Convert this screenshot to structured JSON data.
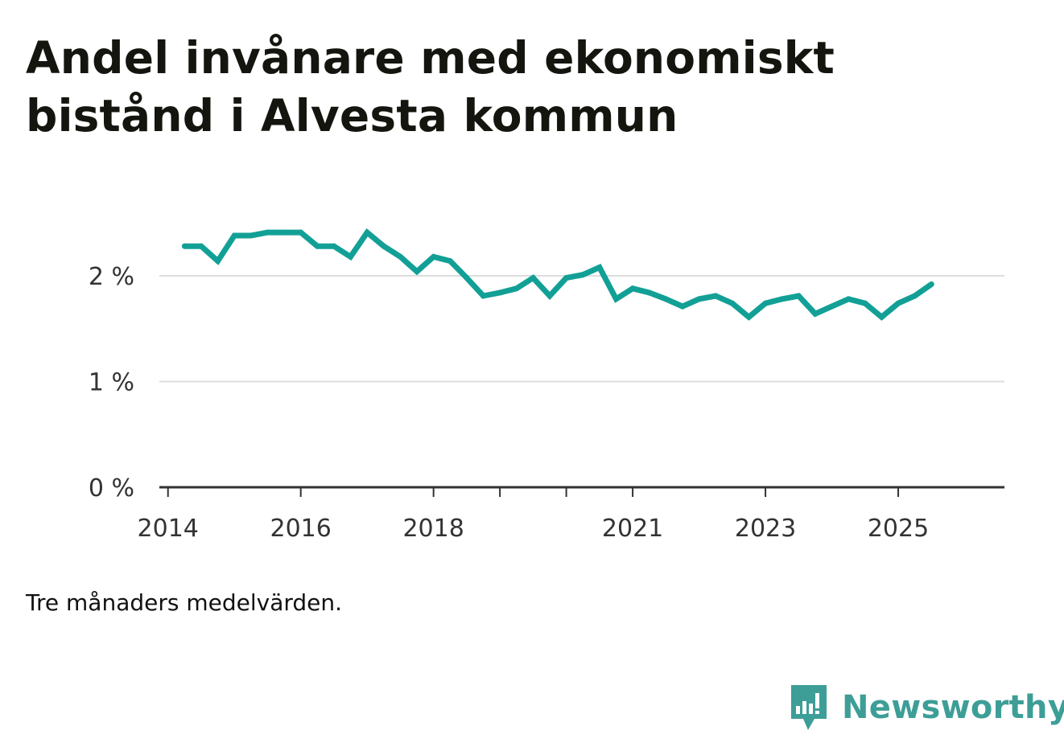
{
  "header": {
    "title": "Andel invånare med ekonomiskt bistånd i Alvesta kommun"
  },
  "footer": {
    "note": "Tre månaders medelvärden.",
    "brand": "Newsworthy"
  },
  "colors": {
    "line": "#12a096",
    "grid": "#dddddd",
    "axis": "#333333",
    "brand": "#3d9e97"
  },
  "chart_data": {
    "type": "line",
    "title": "Andel invånare med ekonomiskt bistånd i Alvesta kommun",
    "xlabel": "",
    "ylabel": "",
    "unit": "%",
    "ylim": [
      0,
      2.5
    ],
    "xlim": [
      2013.87,
      2026.6
    ],
    "y_ticks": [
      {
        "value": 0,
        "label": "0 %"
      },
      {
        "value": 1,
        "label": "1 %"
      },
      {
        "value": 2,
        "label": "2 %"
      }
    ],
    "x_ticks": [
      {
        "value": 2014,
        "label": "2014"
      },
      {
        "value": 2016,
        "label": "2016"
      },
      {
        "value": 2018,
        "label": "2018"
      },
      {
        "value": 2019,
        "label": ""
      },
      {
        "value": 2020,
        "label": ""
      },
      {
        "value": 2021,
        "label": "2021"
      },
      {
        "value": 2023,
        "label": "2023"
      },
      {
        "value": 2025,
        "label": "2025"
      }
    ],
    "series": [
      {
        "name": "Andel invånare med ekonomiskt bistånd",
        "x": [
          2014.25,
          2014.5,
          2014.75,
          2015.0,
          2015.25,
          2015.5,
          2015.75,
          2016.0,
          2016.25,
          2016.5,
          2016.75,
          2017.0,
          2017.25,
          2017.5,
          2017.75,
          2018.0,
          2018.25,
          2018.5,
          2018.75,
          2019.0,
          2019.25,
          2019.5,
          2019.75,
          2020.0,
          2020.25,
          2020.5,
          2020.75,
          2021.0,
          2021.25,
          2021.5,
          2021.75,
          2022.0,
          2022.25,
          2022.5,
          2022.75,
          2023.0,
          2023.25,
          2023.5,
          2023.75,
          2024.0,
          2024.25,
          2024.5,
          2024.75,
          2025.0,
          2025.25,
          2025.5
        ],
        "values": [
          2.28,
          2.28,
          2.14,
          2.38,
          2.38,
          2.41,
          2.41,
          2.41,
          2.28,
          2.28,
          2.18,
          2.41,
          2.28,
          2.18,
          2.04,
          2.18,
          2.14,
          1.98,
          1.81,
          1.84,
          1.88,
          1.98,
          1.81,
          1.98,
          2.01,
          2.08,
          1.78,
          1.88,
          1.84,
          1.78,
          1.71,
          1.78,
          1.81,
          1.74,
          1.61,
          1.74,
          1.78,
          1.81,
          1.64,
          1.71,
          1.78,
          1.74,
          1.61,
          1.74,
          1.81,
          1.92
        ]
      }
    ]
  }
}
